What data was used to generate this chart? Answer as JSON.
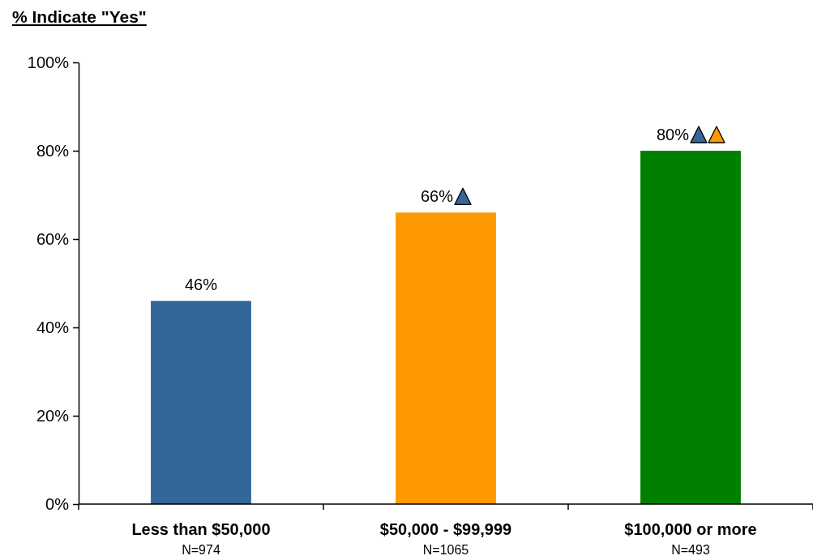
{
  "chart_data": {
    "type": "bar",
    "title": "% Indicate \"Yes\"",
    "categories": [
      "Less than $50,000\nN=974",
      "$50,000 - $99,999\nN=1065",
      "$100,000 or more\nN=493"
    ],
    "values": [
      46,
      66,
      80
    ],
    "colors": [
      "#336699",
      "#ff9900",
      "#008000"
    ],
    "value_labels": [
      "46%",
      "66%",
      "80%"
    ],
    "ylim": [
      0,
      100
    ],
    "yticks": [
      {
        "value": 0,
        "label": "0%"
      },
      {
        "value": 20,
        "label": "20%"
      },
      {
        "value": 40,
        "label": "40%"
      },
      {
        "value": 60,
        "label": "60%"
      },
      {
        "value": 80,
        "label": "80%"
      },
      {
        "value": 100,
        "label": "100%"
      }
    ],
    "grid": false
  }
}
